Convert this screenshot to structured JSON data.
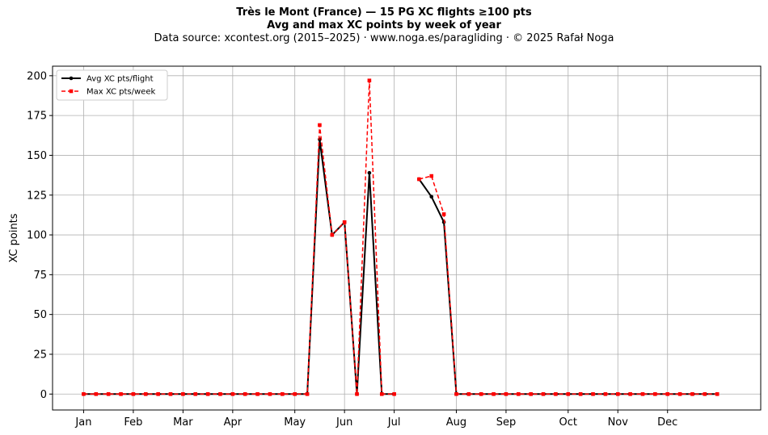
{
  "chart_data": {
    "type": "line",
    "title": "Très le Mont (France)  —  15 PG XC flights ≥100 pts",
    "subtitle": "Avg and max XC points by week of year",
    "source_note": "Data source: xcontest.org (2015–2025)  ·  www.noga.es/paragliding  ·  © 2025 Rafał Noga",
    "xlabel": "",
    "ylabel": "XC points",
    "ylim": [
      -10,
      206
    ],
    "xlim": [
      -2.5,
      54.5
    ],
    "yticks": [
      0,
      25,
      50,
      75,
      100,
      125,
      150,
      175,
      200
    ],
    "grid": true,
    "legend_position": "top-left",
    "month_ticks": [
      {
        "label": "Jan",
        "week": 0
      },
      {
        "label": "Feb",
        "week": 4
      },
      {
        "label": "Mar",
        "week": 8
      },
      {
        "label": "Apr",
        "week": 12
      },
      {
        "label": "May",
        "week": 17
      },
      {
        "label": "Jun",
        "week": 21
      },
      {
        "label": "Jul",
        "week": 25
      },
      {
        "label": "Aug",
        "week": 30
      },
      {
        "label": "Sep",
        "week": 34
      },
      {
        "label": "Oct",
        "week": 39
      },
      {
        "label": "Nov",
        "week": 43
      },
      {
        "label": "Dec",
        "week": 47
      }
    ],
    "x": [
      0,
      1,
      2,
      3,
      4,
      5,
      6,
      7,
      8,
      9,
      10,
      11,
      12,
      13,
      14,
      15,
      16,
      17,
      18,
      19,
      20,
      21,
      22,
      23,
      24,
      25,
      26,
      27,
      28,
      29,
      30,
      31,
      32,
      33,
      34,
      35,
      36,
      37,
      38,
      39,
      40,
      41,
      42,
      43,
      44,
      45,
      46,
      47,
      48,
      49,
      50,
      51
    ],
    "series": [
      {
        "name": "Avg XC pts/flight",
        "color": "#000000",
        "style": "solid",
        "marker": "circle",
        "values": [
          0,
          0,
          0,
          0,
          0,
          0,
          0,
          0,
          0,
          0,
          0,
          0,
          0,
          0,
          0,
          0,
          0,
          0,
          0,
          160,
          100,
          108,
          0,
          139,
          0,
          0,
          null,
          135,
          124,
          108,
          0,
          0,
          0,
          0,
          0,
          0,
          0,
          0,
          0,
          0,
          0,
          0,
          0,
          0,
          0,
          0,
          0,
          0,
          0,
          0,
          0,
          0
        ]
      },
      {
        "name": "Max XC pts/week",
        "color": "#ff0000",
        "style": "dashed",
        "marker": "square",
        "values": [
          0,
          0,
          0,
          0,
          0,
          0,
          0,
          0,
          0,
          0,
          0,
          0,
          0,
          0,
          0,
          0,
          0,
          0,
          0,
          169,
          100,
          108,
          0,
          197,
          0,
          0,
          null,
          135,
          137,
          113,
          0,
          0,
          0,
          0,
          0,
          0,
          0,
          0,
          0,
          0,
          0,
          0,
          0,
          0,
          0,
          0,
          0,
          0,
          0,
          0,
          0,
          0
        ]
      }
    ]
  }
}
